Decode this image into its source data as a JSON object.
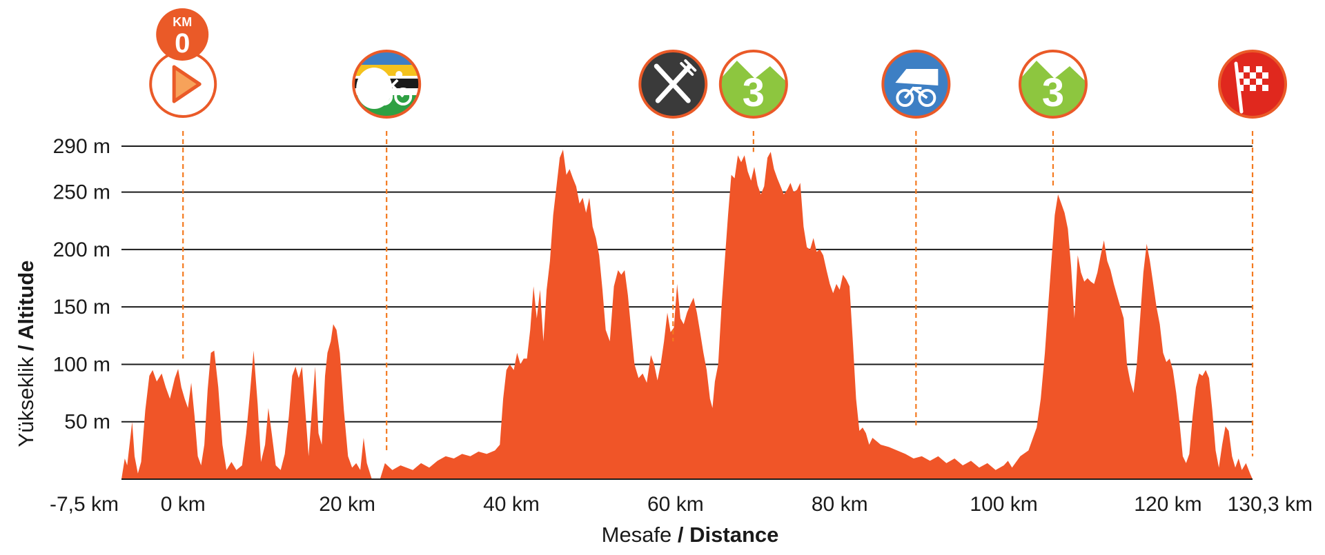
{
  "chart_data": {
    "type": "area",
    "xlabel": {
      "regular": "Mesafe",
      "bold": "/ Distance"
    },
    "ylabel": {
      "regular": "Yükseklik",
      "bold": "/ Altitude"
    },
    "xlim": [
      -7.5,
      130.3
    ],
    "ylim": [
      0,
      290
    ],
    "fill_color": "#f05528",
    "marker_color": "#f47a20",
    "yticks": [
      {
        "value": 50,
        "label": "50 m"
      },
      {
        "value": 100,
        "label": "100 m"
      },
      {
        "value": 150,
        "label": "150 m"
      },
      {
        "value": 200,
        "label": "200 m"
      },
      {
        "value": 250,
        "label": "250 m"
      },
      {
        "value": 290,
        "label": "290 m"
      }
    ],
    "xticks": [
      {
        "value": -7.5,
        "label": "-7,5 km"
      },
      {
        "value": 0,
        "label": "0 km"
      },
      {
        "value": 20,
        "label": "20 km"
      },
      {
        "value": 40,
        "label": "40 km"
      },
      {
        "value": 60,
        "label": "60 km"
      },
      {
        "value": 80,
        "label": "80 km"
      },
      {
        "value": 100,
        "label": "100 km"
      },
      {
        "value": 120,
        "label": "120 km"
      },
      {
        "value": 130.3,
        "label": "130,3 km"
      }
    ],
    "profile": [
      [
        -7.5,
        0
      ],
      [
        -7.1,
        18
      ],
      [
        -6.8,
        12
      ],
      [
        -6.2,
        50
      ],
      [
        -5.9,
        20
      ],
      [
        -5.5,
        5
      ],
      [
        -5.1,
        15
      ],
      [
        -4.6,
        60
      ],
      [
        -4.1,
        90
      ],
      [
        -3.7,
        95
      ],
      [
        -3.2,
        85
      ],
      [
        -2.6,
        92
      ],
      [
        -2.1,
        80
      ],
      [
        -1.6,
        70
      ],
      [
        -1.0,
        88
      ],
      [
        -0.6,
        96
      ],
      [
        -0.2,
        80
      ],
      [
        0.2,
        70
      ],
      [
        0.6,
        62
      ],
      [
        1.0,
        84
      ],
      [
        1.4,
        55
      ],
      [
        1.8,
        20
      ],
      [
        2.2,
        12
      ],
      [
        2.6,
        30
      ],
      [
        3.0,
        78
      ],
      [
        3.4,
        110
      ],
      [
        3.8,
        112
      ],
      [
        4.3,
        80
      ],
      [
        4.8,
        30
      ],
      [
        5.3,
        8
      ],
      [
        5.9,
        15
      ],
      [
        6.5,
        8
      ],
      [
        7.2,
        12
      ],
      [
        7.7,
        40
      ],
      [
        8.1,
        70
      ],
      [
        8.6,
        112
      ],
      [
        9.1,
        65
      ],
      [
        9.5,
        15
      ],
      [
        10.0,
        30
      ],
      [
        10.4,
        62
      ],
      [
        10.8,
        40
      ],
      [
        11.3,
        12
      ],
      [
        11.9,
        8
      ],
      [
        12.4,
        22
      ],
      [
        12.9,
        55
      ],
      [
        13.3,
        90
      ],
      [
        13.7,
        98
      ],
      [
        14.1,
        88
      ],
      [
        14.5,
        98
      ],
      [
        14.9,
        60
      ],
      [
        15.3,
        20
      ],
      [
        15.7,
        60
      ],
      [
        16.1,
        98
      ],
      [
        16.5,
        40
      ],
      [
        16.9,
        30
      ],
      [
        17.3,
        90
      ],
      [
        17.6,
        110
      ],
      [
        18.0,
        120
      ],
      [
        18.3,
        135
      ],
      [
        18.7,
        130
      ],
      [
        19.1,
        110
      ],
      [
        19.6,
        60
      ],
      [
        20.1,
        20
      ],
      [
        20.6,
        10
      ],
      [
        21.1,
        14
      ],
      [
        21.6,
        8
      ],
      [
        22.0,
        36
      ],
      [
        22.4,
        14
      ],
      [
        23.0,
        0
      ],
      [
        24.0,
        0
      ],
      [
        24.6,
        14
      ],
      [
        25.5,
        8
      ],
      [
        26.5,
        12
      ],
      [
        28.0,
        8
      ],
      [
        29.0,
        14
      ],
      [
        30.0,
        10
      ],
      [
        31.0,
        16
      ],
      [
        32.0,
        20
      ],
      [
        33.0,
        18
      ],
      [
        34.0,
        22
      ],
      [
        35.0,
        20
      ],
      [
        36.0,
        24
      ],
      [
        37.0,
        22
      ],
      [
        38.0,
        25
      ],
      [
        38.6,
        30
      ],
      [
        39.0,
        70
      ],
      [
        39.4,
        95
      ],
      [
        39.8,
        100
      ],
      [
        40.3,
        95
      ],
      [
        40.7,
        110
      ],
      [
        41.1,
        100
      ],
      [
        41.5,
        105
      ],
      [
        41.9,
        105
      ],
      [
        42.3,
        130
      ],
      [
        42.7,
        168
      ],
      [
        43.1,
        140
      ],
      [
        43.5,
        165
      ],
      [
        43.9,
        120
      ],
      [
        44.3,
        165
      ],
      [
        44.7,
        190
      ],
      [
        45.1,
        230
      ],
      [
        45.5,
        255
      ],
      [
        45.9,
        280
      ],
      [
        46.3,
        287
      ],
      [
        46.7,
        265
      ],
      [
        47.1,
        270
      ],
      [
        47.5,
        262
      ],
      [
        47.9,
        255
      ],
      [
        48.3,
        240
      ],
      [
        48.7,
        245
      ],
      [
        49.1,
        232
      ],
      [
        49.5,
        245
      ],
      [
        49.9,
        220
      ],
      [
        50.3,
        210
      ],
      [
        50.7,
        195
      ],
      [
        51.1,
        165
      ],
      [
        51.5,
        130
      ],
      [
        52.0,
        120
      ],
      [
        52.5,
        168
      ],
      [
        53.0,
        182
      ],
      [
        53.4,
        178
      ],
      [
        53.8,
        182
      ],
      [
        54.2,
        160
      ],
      [
        54.6,
        130
      ],
      [
        55.0,
        100
      ],
      [
        55.5,
        88
      ],
      [
        56.0,
        92
      ],
      [
        56.5,
        84
      ],
      [
        57.0,
        108
      ],
      [
        57.4,
        100
      ],
      [
        57.8,
        86
      ],
      [
        58.2,
        100
      ],
      [
        58.6,
        120
      ],
      [
        59.0,
        145
      ],
      [
        59.4,
        128
      ],
      [
        59.8,
        132
      ],
      [
        60.2,
        170
      ],
      [
        60.6,
        140
      ],
      [
        61.0,
        135
      ],
      [
        61.4,
        145
      ],
      [
        61.8,
        152
      ],
      [
        62.2,
        158
      ],
      [
        62.6,
        145
      ],
      [
        63.0,
        128
      ],
      [
        63.4,
        110
      ],
      [
        63.8,
        95
      ],
      [
        64.2,
        70
      ],
      [
        64.5,
        62
      ],
      [
        64.8,
        85
      ],
      [
        65.2,
        100
      ],
      [
        65.6,
        150
      ],
      [
        66.0,
        190
      ],
      [
        66.4,
        230
      ],
      [
        66.8,
        265
      ],
      [
        67.2,
        262
      ],
      [
        67.6,
        282
      ],
      [
        68.0,
        276
      ],
      [
        68.4,
        282
      ],
      [
        68.8,
        268
      ],
      [
        69.2,
        260
      ],
      [
        69.6,
        272
      ],
      [
        70.0,
        256
      ],
      [
        70.4,
        248
      ],
      [
        70.8,
        255
      ],
      [
        71.2,
        280
      ],
      [
        71.6,
        285
      ],
      [
        72.0,
        270
      ],
      [
        72.4,
        262
      ],
      [
        72.8,
        255
      ],
      [
        73.2,
        248
      ],
      [
        73.6,
        252
      ],
      [
        74.0,
        258
      ],
      [
        74.4,
        250
      ],
      [
        74.8,
        252
      ],
      [
        75.2,
        258
      ],
      [
        75.6,
        220
      ],
      [
        76.0,
        202
      ],
      [
        76.4,
        200
      ],
      [
        76.8,
        210
      ],
      [
        77.2,
        198
      ],
      [
        77.6,
        200
      ],
      [
        78.0,
        195
      ],
      [
        78.4,
        182
      ],
      [
        78.8,
        170
      ],
      [
        79.2,
        162
      ],
      [
        79.6,
        170
      ],
      [
        80.0,
        165
      ],
      [
        80.4,
        178
      ],
      [
        80.8,
        174
      ],
      [
        81.2,
        168
      ],
      [
        81.6,
        120
      ],
      [
        82.0,
        70
      ],
      [
        82.4,
        42
      ],
      [
        82.8,
        45
      ],
      [
        83.2,
        40
      ],
      [
        83.6,
        30
      ],
      [
        84.0,
        36
      ],
      [
        85.0,
        30
      ],
      [
        86.0,
        28
      ],
      [
        87.0,
        25
      ],
      [
        88.0,
        22
      ],
      [
        89.0,
        18
      ],
      [
        90.0,
        20
      ],
      [
        91.0,
        16
      ],
      [
        92.0,
        20
      ],
      [
        93.0,
        14
      ],
      [
        94.0,
        18
      ],
      [
        95.0,
        12
      ],
      [
        96.0,
        16
      ],
      [
        97.0,
        10
      ],
      [
        98.0,
        14
      ],
      [
        99.0,
        8
      ],
      [
        100.0,
        12
      ],
      [
        100.5,
        16
      ],
      [
        101.0,
        10
      ],
      [
        102.0,
        20
      ],
      [
        103.0,
        25
      ],
      [
        104.0,
        45
      ],
      [
        104.5,
        70
      ],
      [
        105.0,
        110
      ],
      [
        105.4,
        150
      ],
      [
        105.8,
        190
      ],
      [
        106.2,
        230
      ],
      [
        106.6,
        248
      ],
      [
        107.0,
        240
      ],
      [
        107.4,
        232
      ],
      [
        107.8,
        218
      ],
      [
        108.2,
        185
      ],
      [
        108.6,
        140
      ],
      [
        109.0,
        195
      ],
      [
        109.4,
        180
      ],
      [
        109.8,
        172
      ],
      [
        110.2,
        175
      ],
      [
        110.6,
        172
      ],
      [
        111.0,
        170
      ],
      [
        111.4,
        180
      ],
      [
        111.8,
        195
      ],
      [
        112.2,
        208
      ],
      [
        112.6,
        190
      ],
      [
        113.0,
        182
      ],
      [
        113.4,
        170
      ],
      [
        113.8,
        160
      ],
      [
        114.2,
        150
      ],
      [
        114.6,
        140
      ],
      [
        115.0,
        100
      ],
      [
        115.4,
        85
      ],
      [
        115.8,
        75
      ],
      [
        116.2,
        100
      ],
      [
        116.6,
        140
      ],
      [
        117.0,
        180
      ],
      [
        117.4,
        205
      ],
      [
        117.8,
        190
      ],
      [
        118.2,
        170
      ],
      [
        118.6,
        150
      ],
      [
        119.0,
        135
      ],
      [
        119.4,
        110
      ],
      [
        119.8,
        102
      ],
      [
        120.2,
        105
      ],
      [
        120.6,
        95
      ],
      [
        121.0,
        75
      ],
      [
        121.4,
        50
      ],
      [
        121.8,
        20
      ],
      [
        122.2,
        14
      ],
      [
        122.6,
        22
      ],
      [
        123.0,
        55
      ],
      [
        123.4,
        80
      ],
      [
        123.8,
        92
      ],
      [
        124.2,
        90
      ],
      [
        124.6,
        95
      ],
      [
        125.0,
        88
      ],
      [
        125.4,
        60
      ],
      [
        125.8,
        25
      ],
      [
        126.2,
        10
      ],
      [
        126.6,
        30
      ],
      [
        127.0,
        46
      ],
      [
        127.4,
        42
      ],
      [
        127.8,
        20
      ],
      [
        128.2,
        10
      ],
      [
        128.6,
        18
      ],
      [
        129.0,
        8
      ],
      [
        129.5,
        14
      ],
      [
        130.0,
        5
      ],
      [
        130.3,
        0
      ]
    ],
    "markers": [
      {
        "name": "start",
        "km": 0,
        "icon": "play-icon",
        "badge_top": "KM",
        "badge_num": "0",
        "line_bottom": 105
      },
      {
        "name": "sprint",
        "km": 24.8,
        "icon": "cyclist-sprint-icon",
        "line_bottom": 25
      },
      {
        "name": "feed",
        "km": 59.7,
        "icon": "fork-knife-icon",
        "line_bottom": 120
      },
      {
        "name": "kom1",
        "km": 69.5,
        "icon": "mountain-icon",
        "category": "3",
        "line_bottom": 285
      },
      {
        "name": "neutral",
        "km": 89.3,
        "icon": "van-bike-icon",
        "line_bottom": 45
      },
      {
        "name": "kom2",
        "km": 106.0,
        "icon": "mountain-icon",
        "category": "3",
        "line_bottom": 255
      },
      {
        "name": "finish",
        "km": 130.3,
        "icon": "checkered-flag-icon",
        "line_bottom": 20
      }
    ]
  }
}
